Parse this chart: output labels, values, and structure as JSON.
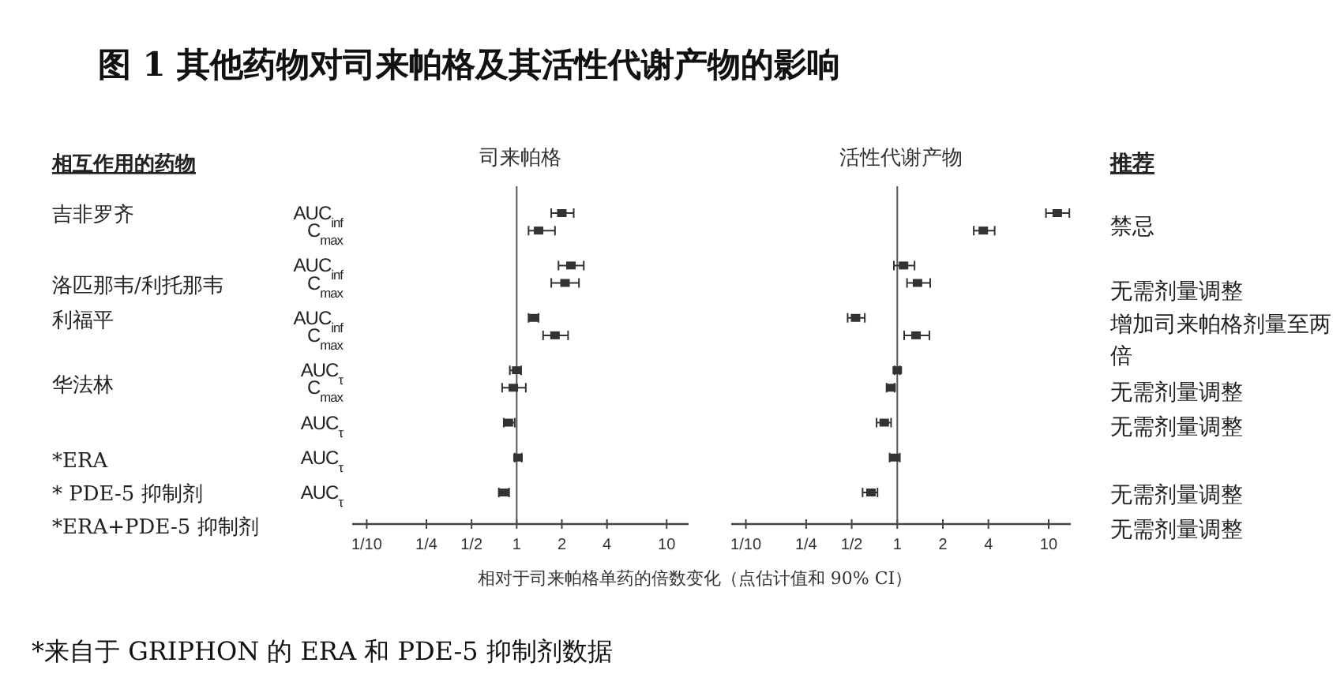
{
  "chart_data": [
    {
      "type": "other",
      "title": "图 1 其他药物对司来帕格及其活性代谢产物的影响",
      "annotations": [
        "*来自于 GRIPHON 的 ERA 和 PDE-5 抑制剂数据"
      ]
    },
    {
      "type": "scatter",
      "orientation": "horizontal",
      "title": "司来帕格",
      "xlabel": "相对于司来帕格单药的倍数变化（点估计值和 90% CI）",
      "categories": [
        "AUC$_{inf}$",
        "C$_{max}$",
        null,
        "AUC$_{inf}$",
        "C$_{max}$",
        null,
        "AUC$_{inf}$",
        "C$_{max}$",
        null,
        "AUC$_{τ}$",
        "C$_{max}$",
        null,
        "AUC$_{τ}$",
        null,
        "AUC$_{τ}$",
        null,
        "AUC$_{τ}$"
      ],
      "values": [
        2.0,
        1.4,
        null,
        2.3,
        2.1,
        null,
        1.3,
        1.8,
        null,
        1.0,
        0.95,
        null,
        0.88,
        null,
        1.02,
        null,
        0.82
      ],
      "errors": [
        [
          1.7,
          2.4
        ],
        [
          1.2,
          1.8
        ],
        null,
        [
          1.9,
          2.8
        ],
        [
          1.7,
          2.6
        ],
        null,
        [
          1.2,
          1.4
        ],
        [
          1.5,
          2.2
        ],
        null,
        [
          0.9,
          1.07
        ],
        [
          0.8,
          1.15
        ],
        null,
        [
          0.82,
          0.97
        ],
        null,
        [
          0.97,
          1.08
        ],
        null,
        [
          0.76,
          0.89
        ]
      ],
      "color": "#333333",
      "marker": "square",
      "log": "x",
      "xlim": [
        0.08,
        14
      ],
      "xticks": [
        {
          "value": 0.1,
          "label": "1/10"
        },
        {
          "value": 0.25,
          "label": "1/4"
        },
        {
          "value": 0.5,
          "label": "1/2"
        },
        1,
        2,
        4,
        10
      ],
      "ref_lines": [
        {
          "axis": "x",
          "value": 1
        }
      ],
      "annotations": [
        "相互作用的药物",
        "吉非罗齐",
        "洛匹那韦/利托那韦",
        "利福平",
        "华法林",
        "*ERA",
        "* PDE-5 抑制剂",
        "*ERA+PDE-5 抑制剂"
      ]
    },
    {
      "type": "scatter",
      "orientation": "horizontal",
      "title": "活性代谢产物",
      "categories": [
        null,
        null,
        null,
        null,
        null,
        null,
        null,
        null,
        null,
        null,
        null,
        null,
        null,
        null,
        null,
        null,
        null
      ],
      "values": [
        11.4,
        3.7,
        null,
        1.1,
        1.36,
        null,
        0.53,
        1.33,
        null,
        1.0,
        0.91,
        null,
        0.82,
        null,
        0.96,
        null,
        0.67
      ],
      "errors": [
        [
          9.6,
          13.7
        ],
        [
          3.2,
          4.4
        ],
        null,
        [
          0.95,
          1.3
        ],
        [
          1.16,
          1.65
        ],
        null,
        [
          0.47,
          0.61
        ],
        [
          1.11,
          1.63
        ],
        null,
        [
          0.96,
          1.04
        ],
        [
          0.85,
          0.96
        ],
        null,
        [
          0.73,
          0.91
        ],
        null,
        [
          0.89,
          1.04
        ],
        null,
        [
          0.59,
          0.74
        ]
      ],
      "color": "#333333",
      "marker": "square",
      "log": "x",
      "xlim": [
        0.08,
        14
      ],
      "xticks": [
        {
          "value": 0.1,
          "label": "1/10"
        },
        {
          "value": 0.25,
          "label": "1/4"
        },
        {
          "value": 0.5,
          "label": "1/2"
        },
        1,
        2,
        4,
        10
      ],
      "ref_lines": [
        {
          "axis": "x",
          "value": 1
        }
      ],
      "annotations": [
        "推荐",
        "禁忌",
        "无需剂量调整",
        "增加司来帕格剂量至两倍",
        "无需剂量调整",
        "无需剂量调整",
        "无需剂量调整",
        "无需剂量调整"
      ]
    }
  ]
}
